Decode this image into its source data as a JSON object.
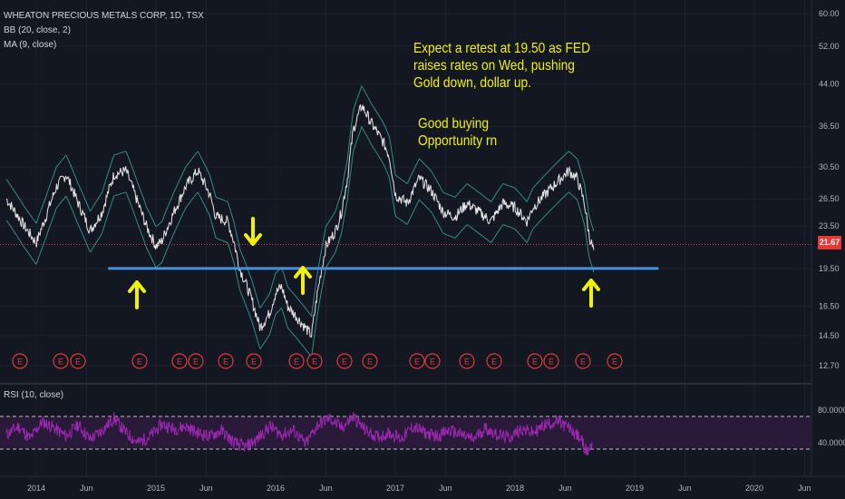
{
  "header": {
    "symbol_line": "WHEATON PRECIOUS METALS CORP, 1D, TSX",
    "bb_line": "BB (20, close, 2)",
    "ma_line": "MA (9, close)",
    "rsi_line": "RSI (10, close)"
  },
  "annotation": {
    "line1": "Expect a retest at 19.50 as FED",
    "line2": "raises rates on Wed, pushing",
    "line3": "Gold down, dollar up.",
    "line4": "Good buying",
    "line5": "Opportunity rn"
  },
  "colors": {
    "background": "#131722",
    "price": "#e8e8e8",
    "bollinger": "#3fa9a0",
    "support_line": "#4a90d9",
    "current_price": "#e53935",
    "arrows": "#f2f200",
    "rsi_line": "#9c27b0",
    "rsi_band": "#2a1a3a",
    "earnings": "#e53935"
  },
  "chart_data": [
    {
      "type": "line",
      "title": "WHEATON PRECIOUS METALS CORP, 1D, TSX",
      "y_scale": "log",
      "ylim": [
        11.6,
        63
      ],
      "y_ticks": [
        "60.00",
        "52.00",
        "44.00",
        "36.50",
        "30.50",
        "26.50",
        "23.50",
        "19.50",
        "16.50",
        "14.50",
        "12.70"
      ],
      "x_ticks": [
        "2014",
        "Jun",
        "2015",
        "Jun",
        "2016",
        "Jun",
        "2017",
        "Jun",
        "2018",
        "Jun",
        "2019",
        "Jun",
        "2020",
        "Jun"
      ],
      "x_tick_dates": [
        2014.0,
        2014.42,
        2015.0,
        2015.42,
        2016.0,
        2016.42,
        2017.0,
        2017.42,
        2018.0,
        2018.42,
        2019.0,
        2019.42,
        2020.0,
        2020.42
      ],
      "current_price": 21.67,
      "current_price_label": "21.67",
      "support_level": 19.5,
      "support_from": 2014.6,
      "support_to": 2019.2,
      "series": [
        {
          "x": [
            2013.75,
            2013.9,
            2014.0,
            2014.08,
            2014.17,
            2014.25,
            2014.35,
            2014.45,
            2014.55,
            2014.65,
            2014.75,
            2014.85,
            2014.92,
            2015.0,
            2015.05,
            2015.15,
            2015.25,
            2015.35,
            2015.45,
            2015.5,
            2015.6,
            2015.65,
            2015.7,
            2015.8,
            2015.87,
            2015.95,
            2016.0,
            2016.05,
            2016.1,
            2016.2,
            2016.3,
            2016.35,
            2016.42,
            2016.5,
            2016.55,
            2016.6,
            2016.65,
            2016.72,
            2016.8,
            2016.9,
            2016.95,
            2017.0,
            2017.1,
            2017.2,
            2017.3,
            2017.4,
            2017.5,
            2017.6,
            2017.7,
            2017.8,
            2017.9,
            2018.0,
            2018.1,
            2018.15,
            2018.25,
            2018.35,
            2018.45,
            2018.52,
            2018.58,
            2018.62,
            2018.66
          ],
          "values": [
            26.5,
            23.5,
            21.8,
            24.5,
            28,
            29.5,
            26,
            23,
            25,
            29.5,
            30,
            26,
            23.5,
            21.5,
            22,
            25,
            28,
            30,
            27,
            24.5,
            24,
            22,
            19.5,
            17,
            15,
            16,
            17.5,
            18,
            16.5,
            15.5,
            14.5,
            17.5,
            21.5,
            23,
            25,
            29,
            36,
            40,
            37,
            34,
            32,
            27,
            26,
            29,
            27.5,
            25,
            24.5,
            26,
            25,
            24,
            26,
            25.5,
            24,
            25.5,
            27,
            28.5,
            30,
            29,
            26,
            22.5,
            21
          ]
        }
      ]
    },
    {
      "type": "line",
      "title": "RSI (10, close)",
      "ylim": [
        20,
        90
      ],
      "y_ticks": [
        "80.0000",
        "40.0000"
      ],
      "band": [
        40,
        80
      ],
      "series": [
        {
          "x": [
            2013.75,
            2013.85,
            2013.95,
            2014.05,
            2014.15,
            2014.25,
            2014.35,
            2014.45,
            2014.55,
            2014.65,
            2014.75,
            2014.85,
            2014.95,
            2015.05,
            2015.15,
            2015.25,
            2015.35,
            2015.45,
            2015.55,
            2015.65,
            2015.75,
            2015.85,
            2015.95,
            2016.05,
            2016.15,
            2016.25,
            2016.35,
            2016.45,
            2016.55,
            2016.65,
            2016.75,
            2016.85,
            2016.95,
            2017.05,
            2017.15,
            2017.25,
            2017.35,
            2017.45,
            2017.55,
            2017.65,
            2017.75,
            2017.85,
            2017.95,
            2018.05,
            2018.15,
            2018.25,
            2018.35,
            2018.45,
            2018.55,
            2018.6,
            2018.65
          ],
          "values": [
            50,
            60,
            45,
            66,
            58,
            48,
            62,
            44,
            55,
            70,
            52,
            40,
            48,
            63,
            57,
            60,
            52,
            48,
            55,
            40,
            35,
            45,
            60,
            50,
            55,
            38,
            62,
            70,
            58,
            72,
            55,
            47,
            52,
            45,
            60,
            52,
            48,
            55,
            50,
            44,
            58,
            50,
            46,
            57,
            52,
            62,
            66,
            58,
            45,
            28,
            40
          ]
        }
      ]
    }
  ]
}
